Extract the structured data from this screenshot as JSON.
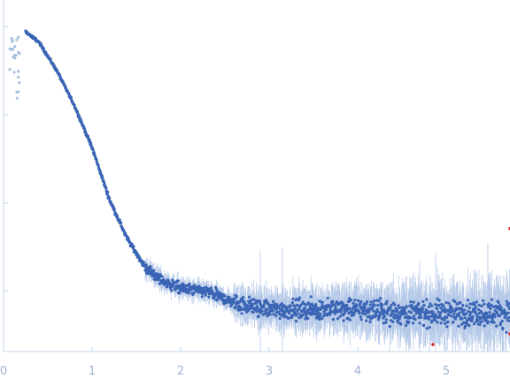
{
  "chart_data": {
    "type": "scatter",
    "title": "",
    "xlabel": "",
    "ylabel": "",
    "xlim": [
      0,
      5.72
    ],
    "x_ticks": [
      0,
      1,
      2,
      3,
      4,
      5
    ],
    "x_tick_labels": [
      "0",
      "1",
      "2",
      "3",
      "4",
      "5"
    ],
    "y_tick_fractions": [
      0.0,
      0.25,
      0.5,
      0.75
    ],
    "y_log_scale": true,
    "grid": false,
    "legend": "none",
    "colors": {
      "data_points": "#3a64b4",
      "error_bars": "#b4c8e8",
      "excluded_points": "#a8c0e0",
      "outliers": "#d62828",
      "axis": "#c6d4ea",
      "tick_labels": "#9fb3d3"
    },
    "series": [
      {
        "name": "",
        "description_points": [
          {
            "x": 0.06,
            "y": 0.98
          },
          {
            "x": 0.1,
            "y": 0.9
          },
          {
            "x": 0.14,
            "y": 0.6
          },
          {
            "x": 0.25,
            "y": 0.91
          },
          {
            "x": 0.4,
            "y": 0.88
          },
          {
            "x": 0.6,
            "y": 0.8
          },
          {
            "x": 0.8,
            "y": 0.7
          },
          {
            "x": 1.0,
            "y": 0.58
          },
          {
            "x": 1.2,
            "y": 0.43
          },
          {
            "x": 1.4,
            "y": 0.32
          },
          {
            "x": 1.6,
            "y": 0.24
          },
          {
            "x": 1.8,
            "y": 0.2
          },
          {
            "x": 2.0,
            "y": 0.18
          },
          {
            "x": 2.3,
            "y": 0.17
          },
          {
            "x": 2.6,
            "y": 0.14
          },
          {
            "x": 3.0,
            "y": 0.12
          },
          {
            "x": 3.5,
            "y": 0.12
          },
          {
            "x": 4.0,
            "y": 0.12
          },
          {
            "x": 4.5,
            "y": 0.11
          },
          {
            "x": 5.0,
            "y": 0.11
          },
          {
            "x": 5.5,
            "y": 0.11
          },
          {
            "x": 5.72,
            "y": 0.11
          }
        ]
      }
    ],
    "outlier_points": [
      {
        "x": 4.85,
        "y": 0.02
      },
      {
        "x": 5.72,
        "y": 0.35
      },
      {
        "x": 5.72,
        "y": 0.05
      }
    ]
  }
}
